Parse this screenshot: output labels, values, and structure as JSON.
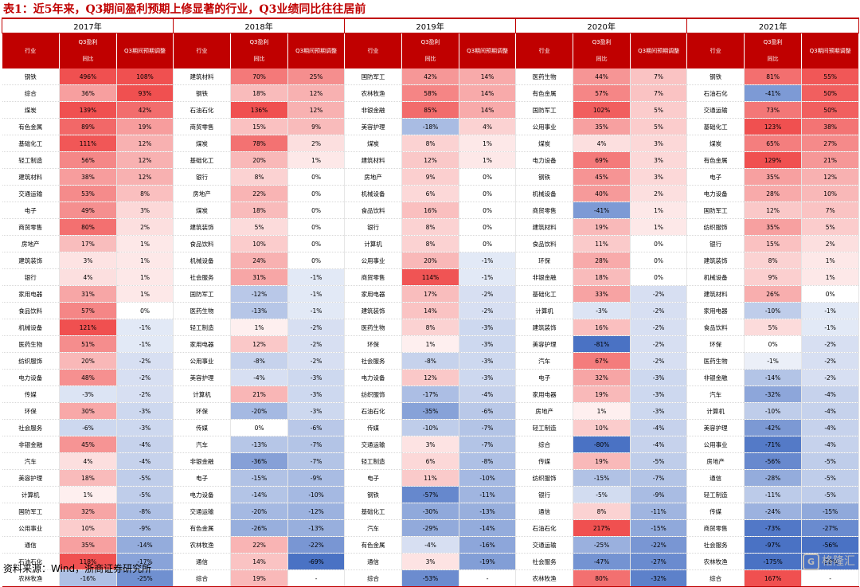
{
  "title": "表1：近5年来，Q3期间盈利预期上修显著的行业，Q3业绩同比往往居前",
  "source": "资料来源：Wind，浙商证券研究所",
  "watermark": {
    "mark": "G",
    "text": "格隆汇"
  },
  "columns": {
    "industry": "行业",
    "yoy_line1": "Q3盈利",
    "yoy_line2": "同比",
    "revision": "Q3期间预期调整"
  },
  "colors": {
    "header_red": "#c00000",
    "positive_scale": "#f05050",
    "negative_scale": "#4a72c4"
  },
  "years": [
    {
      "label": "2017年",
      "rows": [
        [
          "钢铁",
          "496%",
          "108%"
        ],
        [
          "综合",
          "36%",
          "93%"
        ],
        [
          "煤炭",
          "139%",
          "42%"
        ],
        [
          "有色金属",
          "89%",
          "19%"
        ],
        [
          "基础化工",
          "111%",
          "12%"
        ],
        [
          "轻工制造",
          "56%",
          "12%"
        ],
        [
          "建筑材料",
          "38%",
          "12%"
        ],
        [
          "交通运输",
          "53%",
          "8%"
        ],
        [
          "电子",
          "49%",
          "3%"
        ],
        [
          "商贸零售",
          "80%",
          "2%"
        ],
        [
          "房地产",
          "17%",
          "1%"
        ],
        [
          "建筑装饰",
          "3%",
          "1%"
        ],
        [
          "银行",
          "4%",
          "1%"
        ],
        [
          "家用电器",
          "31%",
          "1%"
        ],
        [
          "食品饮料",
          "57%",
          "0%"
        ],
        [
          "机械设备",
          "121%",
          "-1%"
        ],
        [
          "医药生物",
          "51%",
          "-1%"
        ],
        [
          "纺织服饰",
          "20%",
          "-2%"
        ],
        [
          "电力设备",
          "48%",
          "-2%"
        ],
        [
          "传媒",
          "-3%",
          "-2%"
        ],
        [
          "环保",
          "30%",
          "-3%"
        ],
        [
          "社会服务",
          "-6%",
          "-3%"
        ],
        [
          "非银金融",
          "45%",
          "-4%"
        ],
        [
          "汽车",
          "4%",
          "-4%"
        ],
        [
          "美容护理",
          "18%",
          "-5%"
        ],
        [
          "计算机",
          "1%",
          "-5%"
        ],
        [
          "国防军工",
          "32%",
          "-8%"
        ],
        [
          "公用事业",
          "10%",
          "-9%"
        ],
        [
          "通信",
          "35%",
          "-14%"
        ],
        [
          "石油石化",
          "118%",
          "-17%"
        ],
        [
          "农林牧渔",
          "-16%",
          "-25%"
        ]
      ]
    },
    {
      "label": "2018年",
      "rows": [
        [
          "建筑材料",
          "70%",
          "25%"
        ],
        [
          "钢铁",
          "18%",
          "12%"
        ],
        [
          "石油石化",
          "136%",
          "12%"
        ],
        [
          "商贸零售",
          "15%",
          "9%"
        ],
        [
          "煤炭",
          "78%",
          "2%"
        ],
        [
          "基础化工",
          "20%",
          "1%"
        ],
        [
          "银行",
          "8%",
          "0%"
        ],
        [
          "房地产",
          "22%",
          "0%"
        ],
        [
          "煤炭",
          "18%",
          "0%"
        ],
        [
          "建筑装饰",
          "5%",
          "0%"
        ],
        [
          "食品饮料",
          "10%",
          "0%"
        ],
        [
          "机械设备",
          "24%",
          "0%"
        ],
        [
          "社会服务",
          "31%",
          "-1%"
        ],
        [
          "国防军工",
          "-12%",
          "-1%"
        ],
        [
          "医药生物",
          "-13%",
          "-1%"
        ],
        [
          "轻工制造",
          "1%",
          "-2%"
        ],
        [
          "家用电器",
          "12%",
          "-2%"
        ],
        [
          "公用事业",
          "-8%",
          "-2%"
        ],
        [
          "美容护理",
          "-4%",
          "-3%"
        ],
        [
          "计算机",
          "21%",
          "-3%"
        ],
        [
          "环保",
          "-20%",
          "-3%"
        ],
        [
          "传媒",
          "0%",
          "-6%"
        ],
        [
          "汽车",
          "-13%",
          "-7%"
        ],
        [
          "非银金融",
          "-36%",
          "-7%"
        ],
        [
          "电子",
          "-15%",
          "-9%"
        ],
        [
          "电力设备",
          "-14%",
          "-10%"
        ],
        [
          "交通运输",
          "-20%",
          "-12%"
        ],
        [
          "有色金属",
          "-26%",
          "-13%"
        ],
        [
          "农林牧渔",
          "22%",
          "-22%"
        ],
        [
          "通信",
          "14%",
          "-69%"
        ],
        [
          "综合",
          "19%",
          "-"
        ]
      ]
    },
    {
      "label": "2019年",
      "rows": [
        [
          "国防军工",
          "42%",
          "14%"
        ],
        [
          "农林牧渔",
          "58%",
          "14%"
        ],
        [
          "非银金融",
          "85%",
          "14%"
        ],
        [
          "美容护理",
          "-18%",
          "4%"
        ],
        [
          "煤炭",
          "8%",
          "1%"
        ],
        [
          "建筑材料",
          "12%",
          "1%"
        ],
        [
          "房地产",
          "9%",
          "0%"
        ],
        [
          "机械设备",
          "6%",
          "0%"
        ],
        [
          "食品饮料",
          "16%",
          "0%"
        ],
        [
          "银行",
          "8%",
          "0%"
        ],
        [
          "计算机",
          "8%",
          "0%"
        ],
        [
          "公用事业",
          "20%",
          "-1%"
        ],
        [
          "商贸零售",
          "114%",
          "-1%"
        ],
        [
          "家用电器",
          "17%",
          "-2%"
        ],
        [
          "建筑装饰",
          "14%",
          "-2%"
        ],
        [
          "医药生物",
          "8%",
          "-3%"
        ],
        [
          "环保",
          "1%",
          "-3%"
        ],
        [
          "社会服务",
          "-8%",
          "-3%"
        ],
        [
          "电力设备",
          "12%",
          "-3%"
        ],
        [
          "纺织服饰",
          "-17%",
          "-4%"
        ],
        [
          "石油石化",
          "-35%",
          "-6%"
        ],
        [
          "传媒",
          "-10%",
          "-7%"
        ],
        [
          "交通运输",
          "3%",
          "-7%"
        ],
        [
          "轻工制造",
          "6%",
          "-8%"
        ],
        [
          "电子",
          "11%",
          "-10%"
        ],
        [
          "钢铁",
          "-57%",
          "-11%"
        ],
        [
          "基础化工",
          "-30%",
          "-13%"
        ],
        [
          "汽车",
          "-29%",
          "-14%"
        ],
        [
          "有色金属",
          "-4%",
          "-16%"
        ],
        [
          "通信",
          "3%",
          "-19%"
        ],
        [
          "综合",
          "-53%",
          "-"
        ]
      ]
    },
    {
      "label": "2020年",
      "rows": [
        [
          "医药生物",
          "44%",
          "7%"
        ],
        [
          "有色金属",
          "57%",
          "7%"
        ],
        [
          "国防军工",
          "102%",
          "5%"
        ],
        [
          "公用事业",
          "35%",
          "5%"
        ],
        [
          "煤炭",
          "4%",
          "3%"
        ],
        [
          "电力设备",
          "69%",
          "3%"
        ],
        [
          "钢铁",
          "45%",
          "3%"
        ],
        [
          "机械设备",
          "40%",
          "2%"
        ],
        [
          "商贸零售",
          "-41%",
          "1%"
        ],
        [
          "建筑材料",
          "19%",
          "1%"
        ],
        [
          "食品饮料",
          "11%",
          "0%"
        ],
        [
          "环保",
          "28%",
          "0%"
        ],
        [
          "非银金融",
          "18%",
          "0%"
        ],
        [
          "基础化工",
          "33%",
          "-2%"
        ],
        [
          "计算机",
          "-3%",
          "-2%"
        ],
        [
          "建筑装饰",
          "16%",
          "-2%"
        ],
        [
          "美容护理",
          "-81%",
          "-2%"
        ],
        [
          "汽车",
          "67%",
          "-2%"
        ],
        [
          "电子",
          "32%",
          "-3%"
        ],
        [
          "家用电器",
          "19%",
          "-3%"
        ],
        [
          "房地产",
          "1%",
          "-3%"
        ],
        [
          "轻工制造",
          "10%",
          "-4%"
        ],
        [
          "综合",
          "-80%",
          "-4%"
        ],
        [
          "传媒",
          "19%",
          "-5%"
        ],
        [
          "纺织服饰",
          "-15%",
          "-7%"
        ],
        [
          "银行",
          "-5%",
          "-9%"
        ],
        [
          "通信",
          "8%",
          "-11%"
        ],
        [
          "石油石化",
          "217%",
          "-15%"
        ],
        [
          "交通运输",
          "-25%",
          "-22%"
        ],
        [
          "社会服务",
          "-47%",
          "-27%"
        ],
        [
          "农林牧渔",
          "80%",
          "-32%"
        ]
      ]
    },
    {
      "label": "2021年",
      "rows": [
        [
          "钢铁",
          "81%",
          "55%"
        ],
        [
          "石油石化",
          "-41%",
          "50%"
        ],
        [
          "交通运输",
          "73%",
          "50%"
        ],
        [
          "基础化工",
          "123%",
          "38%"
        ],
        [
          "煤炭",
          "65%",
          "27%"
        ],
        [
          "有色金属",
          "129%",
          "21%"
        ],
        [
          "电子",
          "35%",
          "12%"
        ],
        [
          "电力设备",
          "28%",
          "10%"
        ],
        [
          "国防军工",
          "12%",
          "7%"
        ],
        [
          "纺织服饰",
          "35%",
          "5%"
        ],
        [
          "银行",
          "15%",
          "2%"
        ],
        [
          "建筑装饰",
          "8%",
          "1%"
        ],
        [
          "机械设备",
          "9%",
          "1%"
        ],
        [
          "建筑材料",
          "26%",
          "0%"
        ],
        [
          "家用电器",
          "-10%",
          "-1%"
        ],
        [
          "食品饮料",
          "5%",
          "-1%"
        ],
        [
          "环保",
          "0%",
          "-2%"
        ],
        [
          "医药生物",
          "-1%",
          "-2%"
        ],
        [
          "非银金融",
          "-14%",
          "-2%"
        ],
        [
          "汽车",
          "-32%",
          "-4%"
        ],
        [
          "计算机",
          "-10%",
          "-4%"
        ],
        [
          "美容护理",
          "-42%",
          "-4%"
        ],
        [
          "公用事业",
          "-71%",
          "-4%"
        ],
        [
          "房地产",
          "-56%",
          "-5%"
        ],
        [
          "通信",
          "-28%",
          "-5%"
        ],
        [
          "轻工制造",
          "-11%",
          "-5%"
        ],
        [
          "传媒",
          "-24%",
          "-15%"
        ],
        [
          "商贸零售",
          "-73%",
          "-27%"
        ],
        [
          "社会服务",
          "-97%",
          "-56%"
        ],
        [
          "农林牧渔",
          "-175%",
          "-58%"
        ],
        [
          "综合",
          "167%",
          "-"
        ]
      ]
    }
  ]
}
